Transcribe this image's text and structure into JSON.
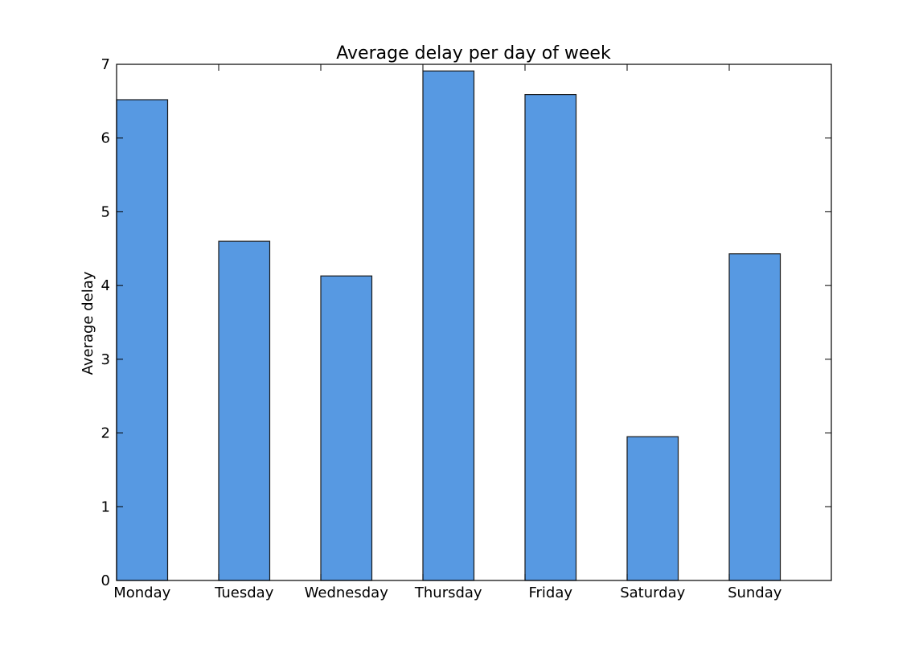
{
  "chart_data": {
    "type": "bar",
    "title": "Average delay per day of week",
    "xlabel": "",
    "ylabel": "Average delay",
    "categories": [
      "Monday",
      "Tuesday",
      "Wednesday",
      "Thursday",
      "Friday",
      "Saturday",
      "Sunday"
    ],
    "values": [
      6.52,
      4.6,
      4.13,
      6.91,
      6.59,
      1.95,
      4.43
    ],
    "ylim": [
      0,
      7
    ],
    "yticks": [
      "0",
      "1",
      "2",
      "3",
      "4",
      "5",
      "6",
      "7"
    ],
    "bar_color": "#5799e2",
    "edge_color": "#1a1a1a",
    "grid": false,
    "legend": "none"
  }
}
